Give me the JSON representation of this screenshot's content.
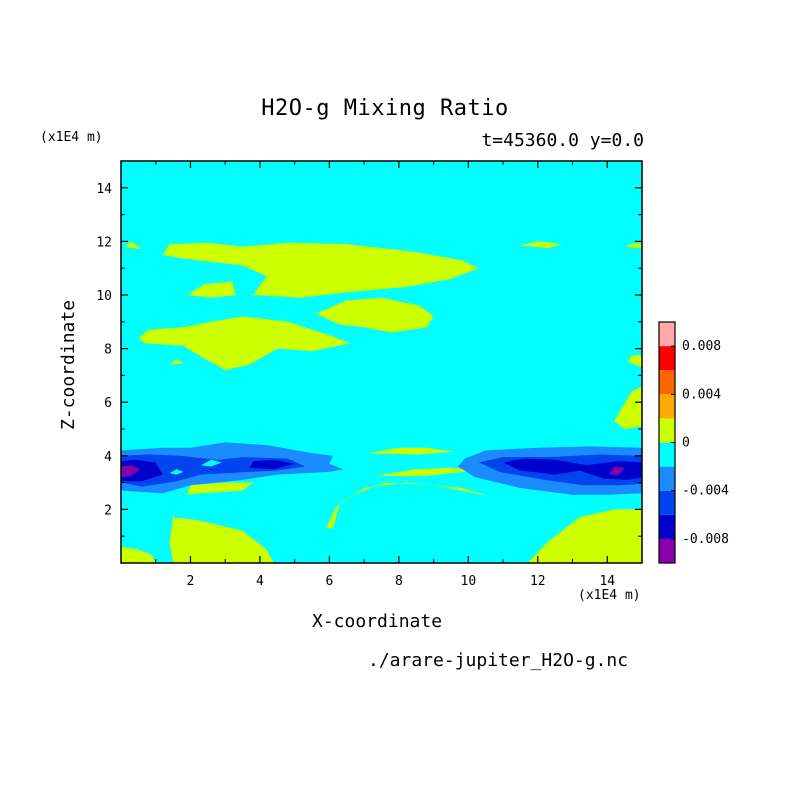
{
  "chart_data": {
    "type": "heatmap",
    "title": "H2O-g Mixing Ratio",
    "subtitle": "t=45360.0 y=0.0",
    "xlabel": "X-coordinate",
    "ylabel": "Z-coordinate",
    "x_unit": "(x1E4 m)",
    "y_unit": "(x1E4 m)",
    "source_label": "./arare-jupiter_H2O-g.nc",
    "xlim": [
      0,
      15
    ],
    "ylim": [
      0,
      15
    ],
    "x_ticks": [
      2,
      4,
      6,
      8,
      10,
      12,
      14
    ],
    "y_ticks": [
      2,
      4,
      6,
      8,
      10,
      12,
      14
    ],
    "x_tick_labels": [
      "2",
      "4",
      "6",
      "8",
      "10",
      "12",
      "14"
    ],
    "y_tick_labels": [
      "2",
      "4",
      "6",
      "8",
      "10",
      "12",
      "14"
    ],
    "colorbar": {
      "levels": [
        -0.01,
        -0.008,
        -0.006,
        -0.004,
        -0.002,
        0,
        0.002,
        0.004,
        0.006,
        0.008,
        0.01
      ],
      "colors": [
        "#8800aa",
        "#0000cc",
        "#0044ee",
        "#1a8cff",
        "#00ffff",
        "#ccff00",
        "#ffaa00",
        "#ff6600",
        "#ff0000",
        "#ffaaaa"
      ],
      "tick_values": [
        0.008,
        0.004,
        0,
        -0.004,
        -0.008
      ],
      "tick_labels": [
        "0.008",
        "0.004",
        "0",
        "-0.004",
        "-0.008"
      ]
    },
    "background_level": "-0.002 to 0",
    "regions": [
      {
        "level": "0 to 0.002",
        "polygon": [
          [
            0,
            0
          ],
          [
            0,
            0.6
          ],
          [
            0.5,
            0.5
          ],
          [
            0.9,
            0.3
          ],
          [
            1,
            0
          ]
        ]
      },
      {
        "level": "0 to 0.002",
        "polygon": [
          [
            1.5,
            0
          ],
          [
            1.4,
            0.8
          ],
          [
            1.5,
            1.7
          ],
          [
            2.2,
            1.6
          ],
          [
            3.5,
            1.2
          ],
          [
            4.2,
            0.5
          ],
          [
            4.4,
            0
          ]
        ]
      },
      {
        "level": "0 to 0.002",
        "polygon": [
          [
            11.7,
            0
          ],
          [
            12.3,
            0.8
          ],
          [
            13.2,
            1.7
          ],
          [
            14.2,
            2.0
          ],
          [
            15,
            2.0
          ],
          [
            15,
            0
          ]
        ]
      },
      {
        "level": "0 to 0.002",
        "polygon": [
          [
            5.9,
            1.3
          ],
          [
            6.2,
            2.1
          ],
          [
            6.8,
            2.6
          ],
          [
            7.6,
            3.0
          ],
          [
            9.0,
            2.9
          ],
          [
            10.2,
            2.6
          ],
          [
            10.6,
            2.5
          ],
          [
            9.8,
            2.8
          ],
          [
            8.2,
            3.0
          ],
          [
            7.0,
            2.8
          ],
          [
            6.3,
            2.2
          ],
          [
            6.1,
            1.3
          ]
        ]
      },
      {
        "level": "0 to 0.002",
        "polygon": [
          [
            1.9,
            2.55
          ],
          [
            2.0,
            2.9
          ],
          [
            3.0,
            3.0
          ],
          [
            3.8,
            3.0
          ],
          [
            3.5,
            2.7
          ],
          [
            2.3,
            2.6
          ]
        ]
      },
      {
        "level": "0 to 0.002",
        "polygon": [
          [
            7.3,
            3.25
          ],
          [
            8.5,
            3.5
          ],
          [
            9.5,
            3.55
          ],
          [
            10.2,
            3.45
          ],
          [
            8.8,
            3.25
          ]
        ]
      },
      {
        "level": "0 to 0.002",
        "polygon": [
          [
            7.1,
            4.1
          ],
          [
            8.0,
            4.3
          ],
          [
            8.8,
            4.3
          ],
          [
            9.6,
            4.15
          ],
          [
            8.5,
            4.05
          ]
        ]
      },
      {
        "level": "0 to 0.002",
        "polygon": [
          [
            0.1,
            11.8
          ],
          [
            0.3,
            12.0
          ],
          [
            0.6,
            11.7
          ]
        ]
      },
      {
        "level": "0 to 0.002",
        "polygon": [
          [
            1.2,
            11.5
          ],
          [
            1.4,
            11.9
          ],
          [
            2.5,
            11.95
          ],
          [
            3.5,
            11.8
          ],
          [
            4.8,
            11.95
          ],
          [
            6.5,
            11.9
          ],
          [
            8.5,
            11.6
          ],
          [
            9.8,
            11.3
          ],
          [
            10.3,
            11.0
          ],
          [
            9.5,
            10.6
          ],
          [
            8.2,
            10.3
          ],
          [
            6.5,
            10.1
          ],
          [
            5.2,
            9.9
          ],
          [
            3.8,
            10.0
          ],
          [
            4.2,
            10.7
          ],
          [
            3.5,
            11.1
          ],
          [
            2.2,
            11.3
          ],
          [
            1.6,
            11.4
          ]
        ]
      },
      {
        "level": "0 to 0.002",
        "polygon": [
          [
            1.9,
            10.0
          ],
          [
            2.4,
            10.4
          ],
          [
            3.2,
            10.5
          ],
          [
            3.3,
            10.0
          ],
          [
            2.6,
            9.9
          ]
        ]
      },
      {
        "level": "0 to 0.002",
        "polygon": [
          [
            5.6,
            9.3
          ],
          [
            6.5,
            9.8
          ],
          [
            7.5,
            9.9
          ],
          [
            8.6,
            9.6
          ],
          [
            9.0,
            9.2
          ],
          [
            8.8,
            8.8
          ],
          [
            7.8,
            8.6
          ],
          [
            7.0,
            8.8
          ],
          [
            6.3,
            8.9
          ]
        ]
      },
      {
        "level": "0 to 0.002",
        "polygon": [
          [
            0.5,
            8.4
          ],
          [
            0.8,
            8.7
          ],
          [
            1.8,
            8.8
          ],
          [
            2.6,
            9.0
          ],
          [
            3.5,
            9.2
          ],
          [
            4.8,
            9.0
          ],
          [
            6.0,
            8.5
          ],
          [
            6.6,
            8.2
          ],
          [
            5.5,
            7.9
          ],
          [
            4.5,
            8.0
          ],
          [
            3.7,
            7.4
          ],
          [
            3.0,
            7.2
          ],
          [
            2.3,
            7.7
          ],
          [
            1.8,
            8.1
          ],
          [
            0.7,
            8.2
          ]
        ]
      },
      {
        "level": "0 to 0.002",
        "polygon": [
          [
            1.4,
            7.4
          ],
          [
            1.6,
            7.6
          ],
          [
            1.8,
            7.45
          ]
        ]
      },
      {
        "level": "0 to 0.002",
        "polygon": [
          [
            11.5,
            11.85
          ],
          [
            12.0,
            12.0
          ],
          [
            12.7,
            11.9
          ],
          [
            12.3,
            11.75
          ]
        ]
      },
      {
        "level": "0 to 0.002",
        "polygon": [
          [
            14.5,
            11.8
          ],
          [
            14.8,
            11.95
          ],
          [
            15,
            11.9
          ],
          [
            15,
            11.75
          ]
        ]
      },
      {
        "level": "0 to 0.002",
        "polygon": [
          [
            14.6,
            7.5
          ],
          [
            14.7,
            7.75
          ],
          [
            15,
            7.75
          ],
          [
            15,
            7.3
          ]
        ]
      },
      {
        "level": "0 to 0.002",
        "polygon": [
          [
            14.2,
            5.3
          ],
          [
            14.7,
            6.4
          ],
          [
            15,
            6.6
          ],
          [
            15,
            5.1
          ],
          [
            14.5,
            5.0
          ]
        ]
      },
      {
        "level": "-0.004 to -0.002",
        "polygon": [
          [
            0,
            2.7
          ],
          [
            1.2,
            2.6
          ],
          [
            2.0,
            2.9
          ],
          [
            3.5,
            3.1
          ],
          [
            4.5,
            3.3
          ],
          [
            6.0,
            3.4
          ],
          [
            6.4,
            3.5
          ],
          [
            6.0,
            3.7
          ],
          [
            6.1,
            4.0
          ],
          [
            5.5,
            4.1
          ],
          [
            4.2,
            4.4
          ],
          [
            3.0,
            4.5
          ],
          [
            2.0,
            4.3
          ],
          [
            1.2,
            4.3
          ],
          [
            0,
            4.2
          ]
        ]
      },
      {
        "level": "-0.004 to -0.002",
        "polygon": [
          [
            9.7,
            3.6
          ],
          [
            10.2,
            3.2
          ],
          [
            11.5,
            2.8
          ],
          [
            13.0,
            2.55
          ],
          [
            14.0,
            2.55
          ],
          [
            15,
            2.6
          ],
          [
            15,
            4.3
          ],
          [
            13.5,
            4.35
          ],
          [
            12.0,
            4.3
          ],
          [
            10.5,
            4.2
          ],
          [
            9.9,
            3.9
          ]
        ]
      },
      {
        "level": "-0.006 to -0.004",
        "polygon": [
          [
            0,
            3.0
          ],
          [
            0.6,
            2.85
          ],
          [
            1.6,
            3.05
          ],
          [
            2.3,
            3.3
          ],
          [
            3.0,
            3.35
          ],
          [
            4.5,
            3.45
          ],
          [
            5.3,
            3.6
          ],
          [
            4.8,
            3.9
          ],
          [
            3.5,
            3.95
          ],
          [
            2.8,
            3.85
          ],
          [
            2.4,
            3.9
          ],
          [
            1.7,
            4.0
          ],
          [
            0.8,
            4.05
          ],
          [
            0,
            4.0
          ]
        ]
      },
      {
        "level": "-0.006 to -0.004",
        "polygon": [
          [
            10.3,
            3.75
          ],
          [
            10.9,
            3.4
          ],
          [
            12.2,
            3.1
          ],
          [
            13.3,
            2.9
          ],
          [
            14.3,
            2.9
          ],
          [
            15,
            2.95
          ],
          [
            15,
            4.0
          ],
          [
            13.8,
            4.05
          ],
          [
            12.3,
            3.95
          ],
          [
            11.0,
            3.95
          ]
        ]
      },
      {
        "level": "-0.008 to -0.006",
        "polygon": [
          [
            0,
            3.05
          ],
          [
            0.6,
            3.05
          ],
          [
            1.2,
            3.3
          ],
          [
            1.0,
            3.75
          ],
          [
            0.4,
            3.85
          ],
          [
            0,
            3.8
          ]
        ]
      },
      {
        "level": "-0.008 to -0.006",
        "polygon": [
          [
            3.7,
            3.55
          ],
          [
            4.4,
            3.5
          ],
          [
            5.0,
            3.7
          ],
          [
            4.4,
            3.85
          ],
          [
            3.8,
            3.8
          ]
        ]
      },
      {
        "level": "-0.008 to -0.006",
        "polygon": [
          [
            11.0,
            3.75
          ],
          [
            11.5,
            3.45
          ],
          [
            12.5,
            3.3
          ],
          [
            13.2,
            3.45
          ],
          [
            13.9,
            3.15
          ],
          [
            14.6,
            3.1
          ],
          [
            15,
            3.2
          ],
          [
            15,
            3.75
          ],
          [
            14.3,
            3.8
          ],
          [
            13.4,
            3.65
          ],
          [
            12.5,
            3.85
          ],
          [
            11.6,
            3.9
          ]
        ]
      },
      {
        "level": "-0.01 to -0.008",
        "polygon": [
          [
            0,
            3.2
          ],
          [
            0.3,
            3.25
          ],
          [
            0.55,
            3.5
          ],
          [
            0.3,
            3.65
          ],
          [
            0,
            3.6
          ]
        ]
      },
      {
        "level": "-0.01 to -0.008",
        "polygon": [
          [
            14.05,
            3.3
          ],
          [
            14.35,
            3.3
          ],
          [
            14.5,
            3.55
          ],
          [
            14.2,
            3.6
          ]
        ]
      },
      {
        "level": "-0.002 to 0",
        "polygon": [
          [
            2.3,
            3.65
          ],
          [
            2.6,
            3.85
          ],
          [
            2.9,
            3.75
          ],
          [
            2.6,
            3.6
          ]
        ]
      },
      {
        "level": "-0.002 to 0",
        "polygon": [
          [
            1.4,
            3.35
          ],
          [
            1.6,
            3.5
          ],
          [
            1.8,
            3.4
          ],
          [
            1.6,
            3.3
          ]
        ]
      }
    ]
  }
}
